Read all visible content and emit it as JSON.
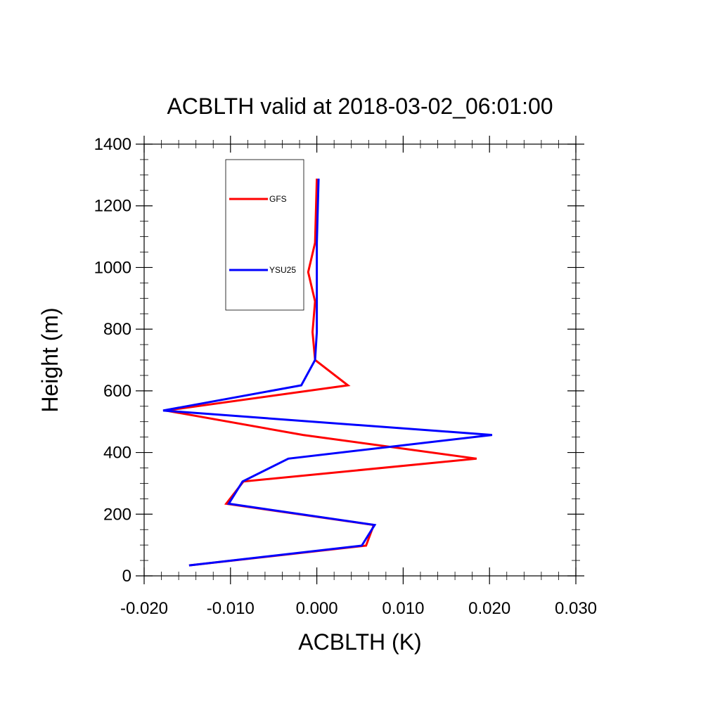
{
  "chart_data": {
    "type": "line",
    "title": "ACBLTH valid at 2018-03-02_06:01:00",
    "xlabel": "ACBLTH (K)",
    "ylabel": "Height (m)",
    "xlim": [
      -0.02,
      0.03
    ],
    "ylim": [
      0,
      1400
    ],
    "xticks": [
      "-0.020",
      "-0.010",
      "0.000",
      "0.010",
      "0.020",
      "0.030"
    ],
    "xtick_values": [
      -0.02,
      -0.01,
      0.0,
      0.01,
      0.02,
      0.03
    ],
    "yticks": [
      "0",
      "200",
      "400",
      "600",
      "800",
      "1000",
      "1200",
      "1400"
    ],
    "ytick_values": [
      0,
      200,
      400,
      600,
      800,
      1000,
      1200,
      1400
    ],
    "grid": false,
    "legend_position": "top-left",
    "series": [
      {
        "name": "GFS",
        "color": "#ff0000",
        "points": [
          [
            -0.0148,
            34
          ],
          [
            0.0057,
            98
          ],
          [
            0.0066,
            165
          ],
          [
            -0.0105,
            234
          ],
          [
            -0.0085,
            306
          ],
          [
            0.0185,
            380
          ],
          [
            -0.0016,
            457
          ],
          [
            -0.0175,
            536
          ],
          [
            0.0036,
            618
          ],
          [
            -0.0002,
            700
          ],
          [
            -0.0005,
            791
          ],
          [
            -0.0002,
            890
          ],
          [
            -0.001,
            985
          ],
          [
            -0.0002,
            1080
          ],
          [
            0.0,
            1288
          ]
        ]
      },
      {
        "name": "YSU25",
        "color": "#0000ff",
        "points": [
          [
            -0.0148,
            34
          ],
          [
            0.0052,
            98
          ],
          [
            0.0067,
            165
          ],
          [
            -0.0102,
            234
          ],
          [
            -0.0086,
            306
          ],
          [
            -0.0033,
            380
          ],
          [
            0.0203,
            457
          ],
          [
            -0.0178,
            536
          ],
          [
            -0.0018,
            618
          ],
          [
            -0.0002,
            700
          ],
          [
            0.0,
            791
          ],
          [
            0.0,
            890
          ],
          [
            0.0,
            985
          ],
          [
            0.0,
            1080
          ],
          [
            0.0002,
            1288
          ]
        ]
      }
    ]
  }
}
